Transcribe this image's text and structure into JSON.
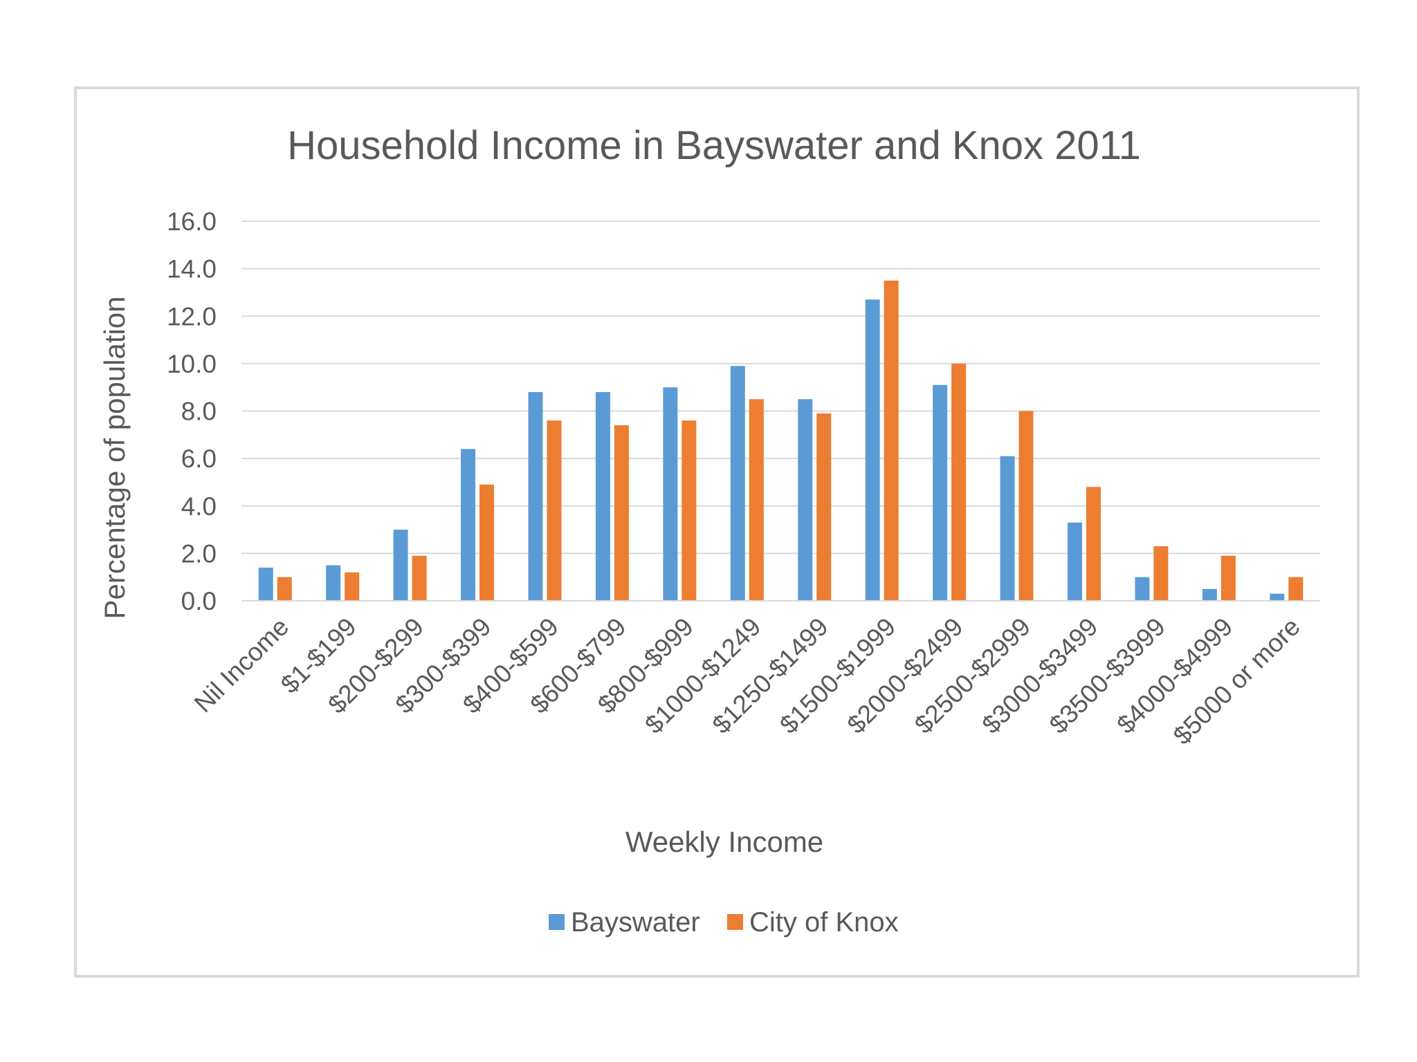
{
  "chart_data": {
    "type": "bar",
    "title": "Household Income in Bayswater and Knox 2011",
    "xlabel": "Weekly Income",
    "ylabel": "Percentage of population",
    "ylim": [
      0,
      16
    ],
    "yticks": [
      "0.0",
      "2.0",
      "4.0",
      "6.0",
      "8.0",
      "10.0",
      "12.0",
      "14.0",
      "16.0"
    ],
    "grid": true,
    "legend_position": "bottom",
    "categories": [
      "Nil Income",
      "$1-$199",
      "$200-$299",
      "$300-$399",
      "$400-$599",
      "$600-$799",
      "$800-$999",
      "$1000-$1249",
      "$1250-$1499",
      "$1500-$1999",
      "$2000-$2499",
      "$2500-$2999",
      "$3000-$3499",
      "$3500-$3999",
      "$4000-$4999",
      "$5000 or more"
    ],
    "series": [
      {
        "name": "Bayswater",
        "color": "#5b9bd5",
        "values": [
          1.4,
          1.5,
          3.0,
          6.4,
          8.8,
          8.8,
          9.0,
          9.9,
          8.5,
          12.7,
          9.1,
          6.1,
          3.3,
          1.0,
          0.5,
          0.3
        ]
      },
      {
        "name": "City of Knox",
        "color": "#ed7d31",
        "values": [
          1.0,
          1.2,
          1.9,
          4.9,
          7.6,
          7.4,
          7.6,
          8.5,
          7.9,
          13.5,
          10.0,
          8.0,
          4.8,
          2.3,
          1.9,
          1.0
        ]
      }
    ]
  }
}
